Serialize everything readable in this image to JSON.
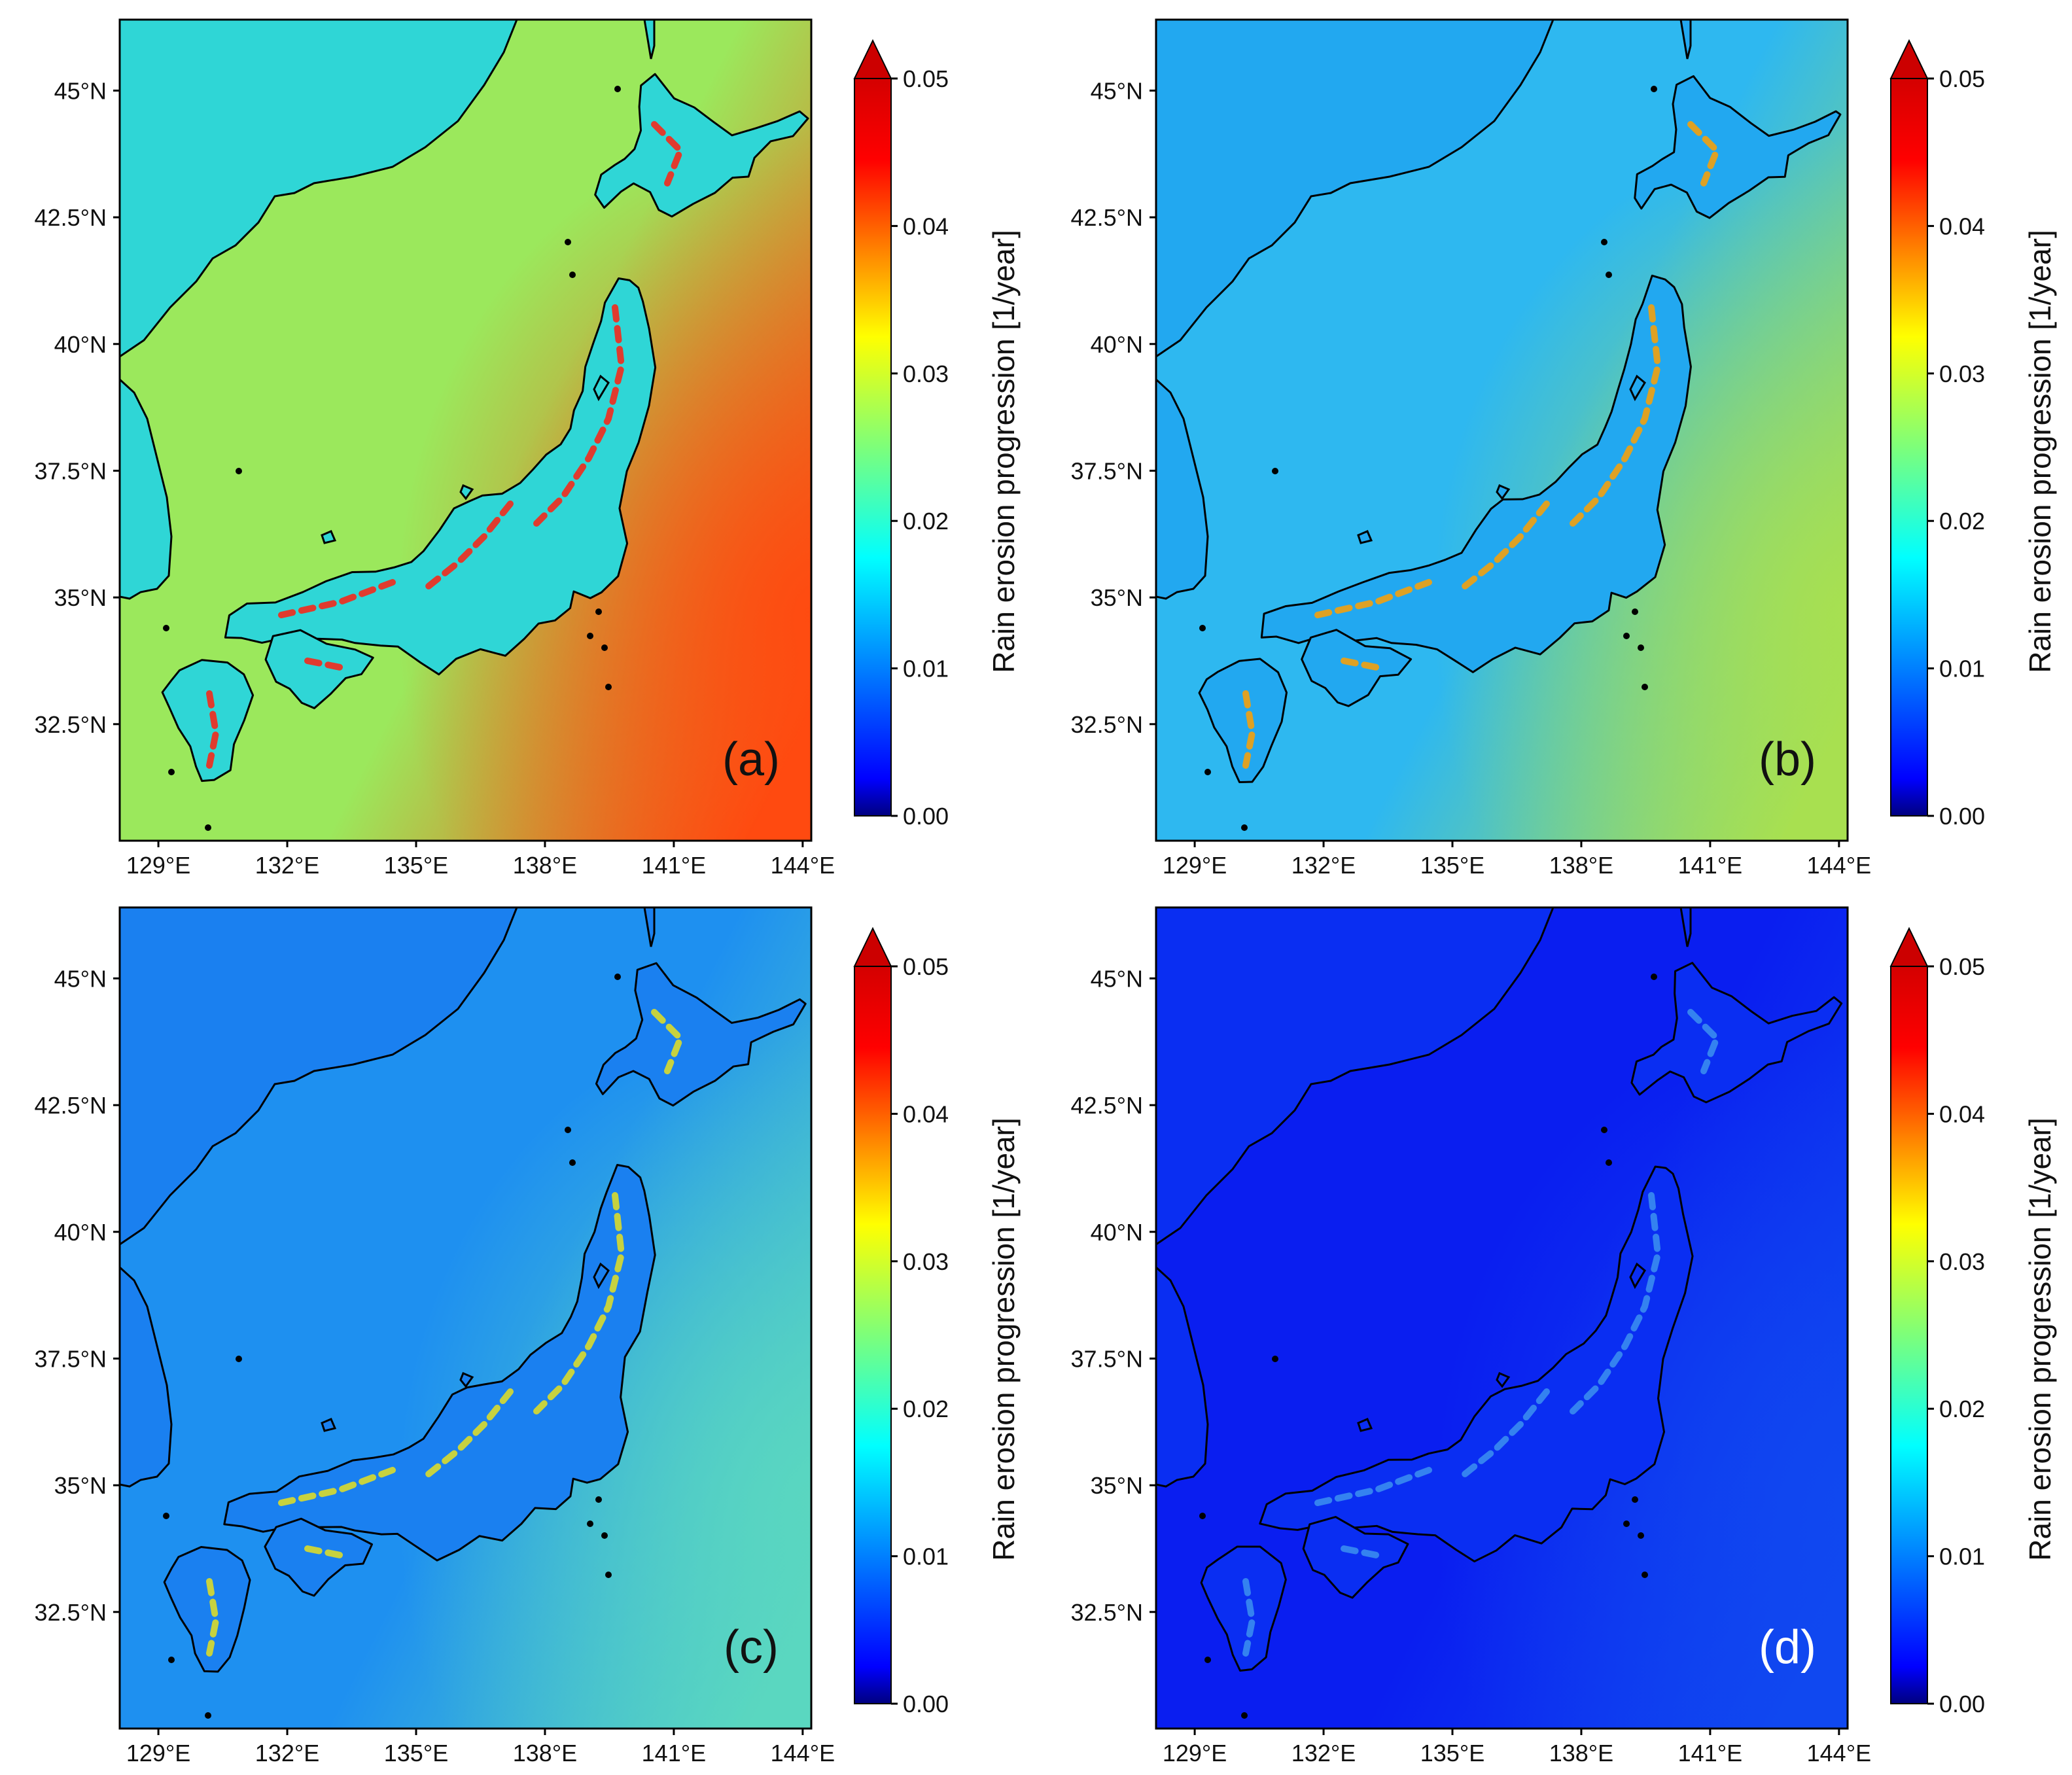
{
  "figure": {
    "colorbar": {
      "label": "Rain erosion progression [1/year]",
      "ticks": [
        "0.00",
        "0.01",
        "0.02",
        "0.03",
        "0.04",
        "0.05"
      ],
      "min": 0.0,
      "max": 0.05,
      "extend": "max",
      "colormap": "jet"
    },
    "lat_ticks": [
      "45°N",
      "42.5°N",
      "40°N",
      "37.5°N",
      "35°N",
      "32.5°N"
    ],
    "lon_ticks": [
      "129°E",
      "132°E",
      "135°E",
      "138°E",
      "141°E",
      "144°E"
    ],
    "panels": [
      {
        "label": "(a)",
        "label_color": "#111111",
        "sea_color": "#9be85c",
        "pacific_color": "#ff4a10",
        "land_color": "#2fd6d6",
        "mountain_color": "#ff2010"
      },
      {
        "label": "(b)",
        "label_color": "#111111",
        "sea_color": "#2eb8f0",
        "pacific_color": "#a8e050",
        "land_color": "#22a8f0",
        "mountain_color": "#ffa000"
      },
      {
        "label": "(c)",
        "label_color": "#111111",
        "sea_color": "#1e90f0",
        "pacific_color": "#5ad7c0",
        "land_color": "#1a80f0",
        "mountain_color": "#e6e020"
      },
      {
        "label": "(d)",
        "label_color": "#ffffff",
        "sea_color": "#0a1ef0",
        "pacific_color": "#1048f0",
        "land_color": "#0a2ef2",
        "mountain_color": "#3c90f0"
      }
    ]
  }
}
